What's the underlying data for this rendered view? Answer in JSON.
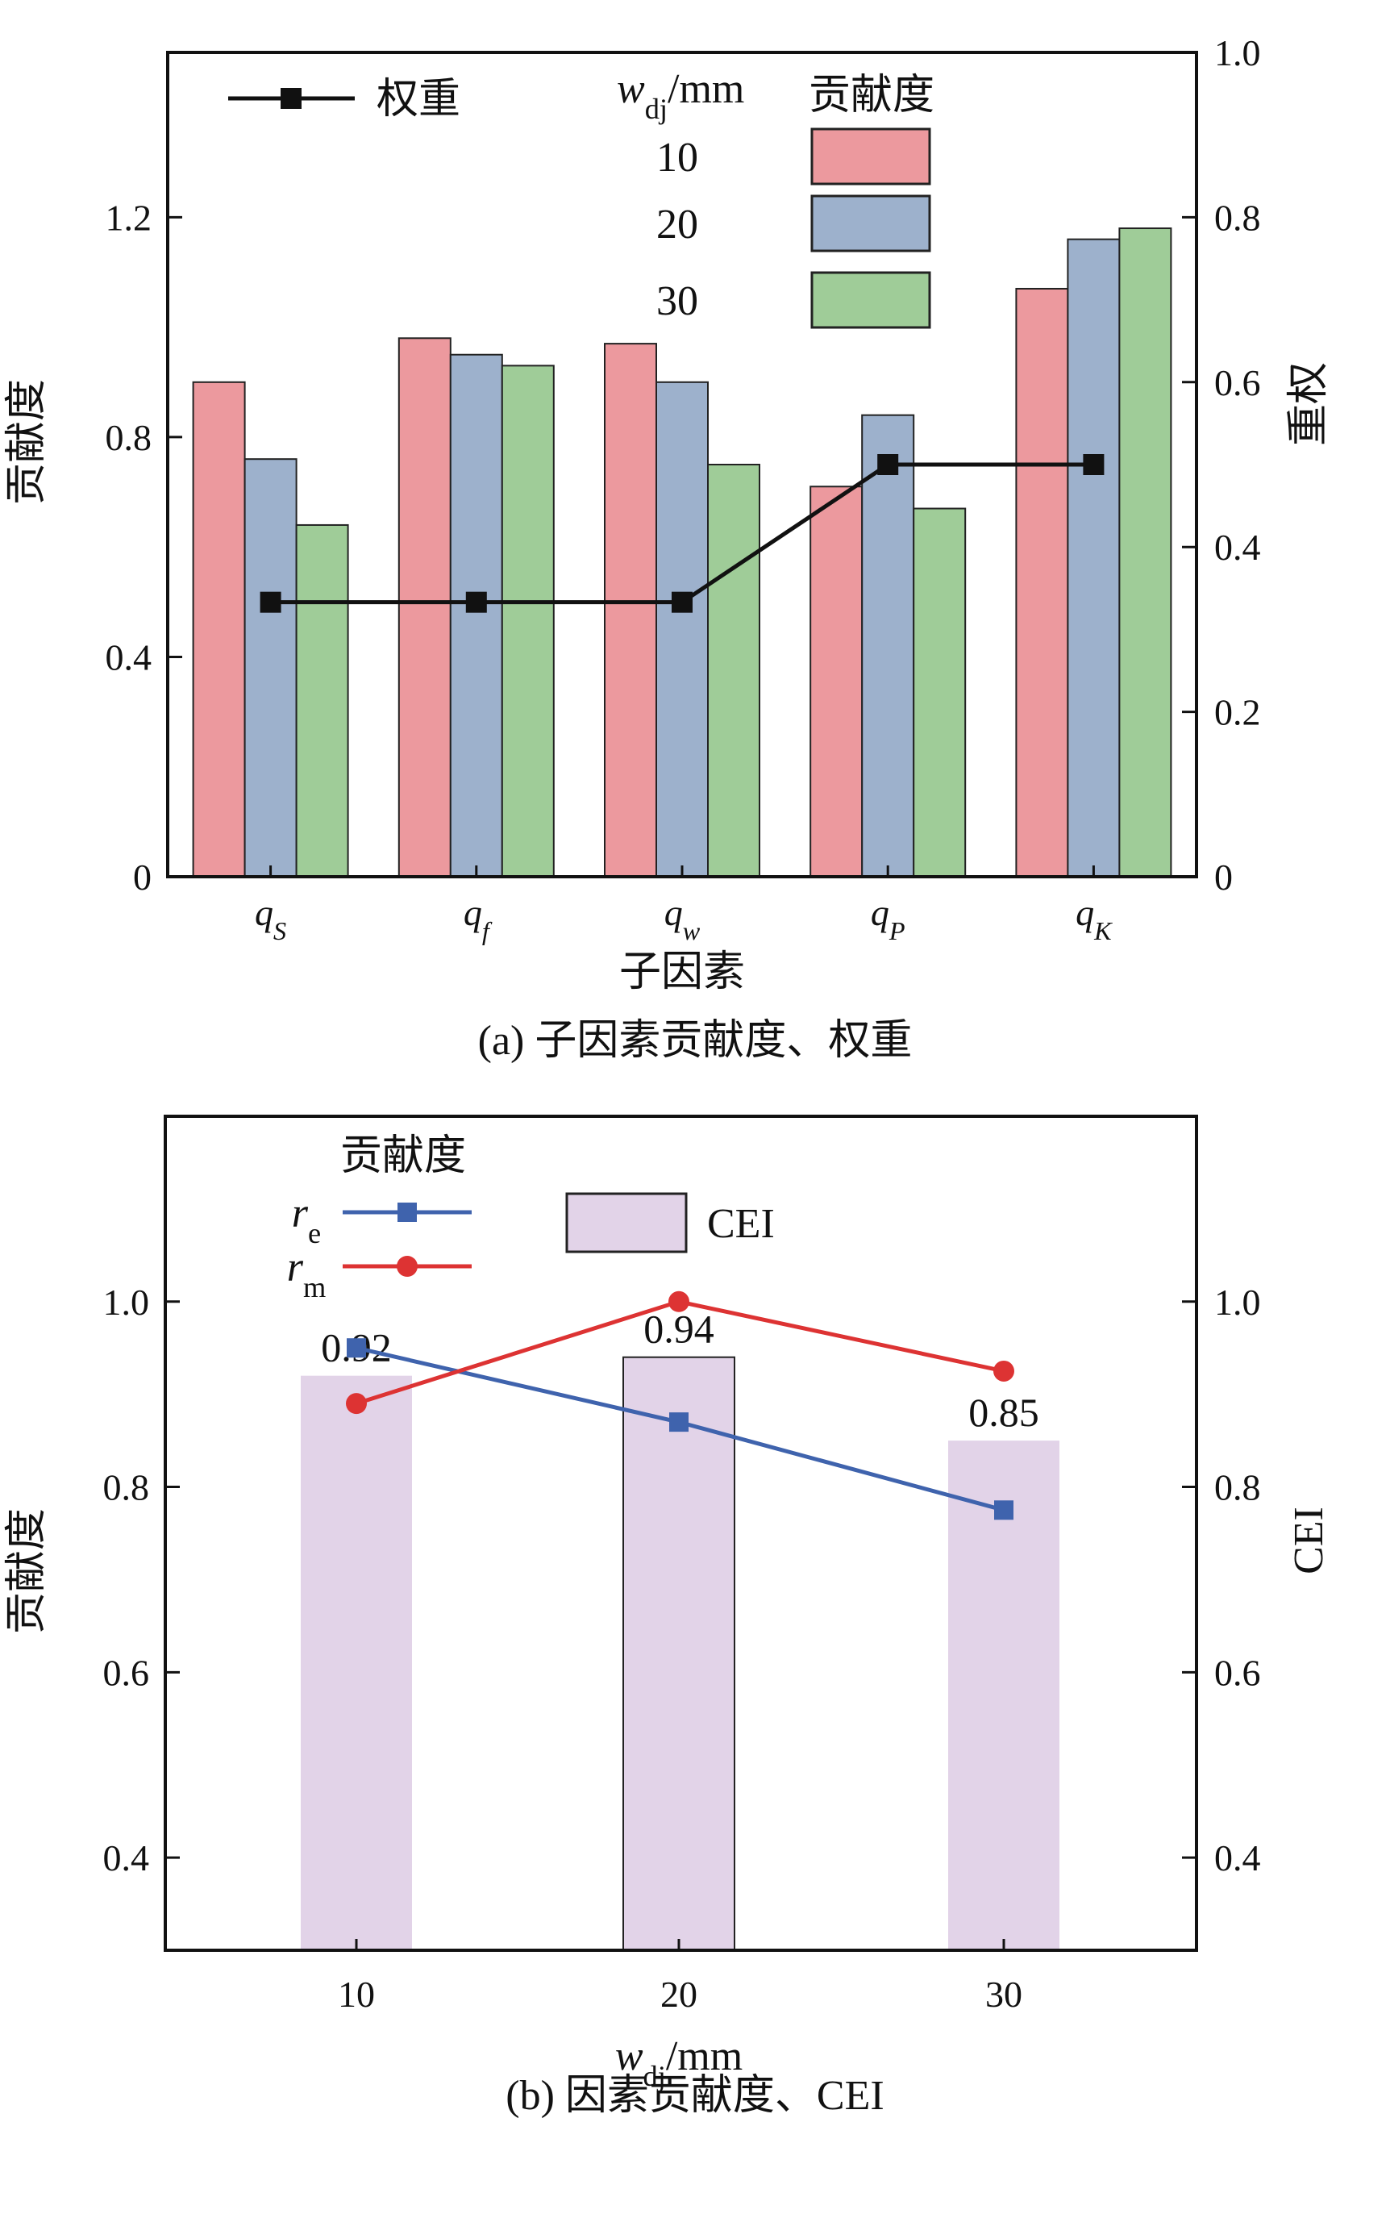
{
  "chart_data": [
    {
      "type": "bar",
      "caption": "(a) 子因素贡献度、权重",
      "xlabel": "子因素",
      "ylabel": "贡献度",
      "y2label": "权重",
      "categories": [
        {
          "base": "q",
          "sub": "S"
        },
        {
          "base": "q",
          "sub": "f"
        },
        {
          "base": "q",
          "sub": "w"
        },
        {
          "base": "q",
          "sub": "P"
        },
        {
          "base": "q",
          "sub": "K"
        }
      ],
      "ylim": [
        0,
        1.5
      ],
      "yticks": [
        0,
        0.4,
        0.8,
        1.2
      ],
      "ytick_labels": [
        "0",
        "0.4",
        "0.8",
        "1.2"
      ],
      "y2lim": [
        0,
        1.0
      ],
      "y2ticks": [
        0,
        0.2,
        0.4,
        0.6,
        0.8,
        1.0
      ],
      "y2tick_labels": [
        "0",
        "0.2",
        "0.4",
        "0.6",
        "0.8",
        "1.0"
      ],
      "legend_title_var": {
        "base": "w",
        "sub": "dj",
        "unit": "/mm"
      },
      "legend_title_bars": "贡献度",
      "series": [
        {
          "name": "10",
          "color": "#ec999e",
          "values": [
            0.9,
            0.98,
            0.97,
            0.71,
            1.07
          ]
        },
        {
          "name": "20",
          "color": "#9db1cc",
          "values": [
            0.76,
            0.95,
            0.9,
            0.84,
            1.16
          ]
        },
        {
          "name": "30",
          "color": "#9fcc98",
          "values": [
            0.64,
            0.93,
            0.75,
            0.67,
            1.18
          ]
        }
      ],
      "line_series": {
        "name": "权重",
        "color": "#111111",
        "axis": "right",
        "values": [
          0.333,
          0.333,
          0.333,
          0.5,
          0.5
        ]
      }
    },
    {
      "type": "bar",
      "caption": "(b) 因素贡献度、CEI",
      "xlabel": {
        "base": "w",
        "sub": "dj",
        "unit": "/mm"
      },
      "ylabel": "贡献度",
      "y2label": "CEI",
      "categories": [
        "10",
        "20",
        "30"
      ],
      "ylim": [
        0.3,
        1.2
      ],
      "yticks": [
        0.4,
        0.6,
        0.8,
        1.0
      ],
      "ytick_labels": [
        "0.4",
        "0.6",
        "0.8",
        "1.0"
      ],
      "y2lim": [
        0.3,
        1.2
      ],
      "y2ticks": [
        0.4,
        0.6,
        0.8,
        1.0
      ],
      "y2tick_labels": [
        "0.4",
        "0.6",
        "0.8",
        "1.0"
      ],
      "bar_series": {
        "name": "CEI",
        "color": "#e2d3e8",
        "axis": "right",
        "values": [
          0.92,
          0.94,
          0.85
        ],
        "labels": [
          "0.92",
          "0.94",
          "0.85"
        ]
      },
      "legend_title_lines": "贡献度",
      "line_series": [
        {
          "name": {
            "base": "r",
            "sub": "e"
          },
          "color": "#3f63ad",
          "marker": "square",
          "values": [
            0.95,
            0.87,
            0.775
          ]
        },
        {
          "name": {
            "base": "r",
            "sub": "m"
          },
          "color": "#dd3333",
          "marker": "circle",
          "values": [
            0.89,
            1.0,
            0.925
          ]
        }
      ]
    }
  ]
}
